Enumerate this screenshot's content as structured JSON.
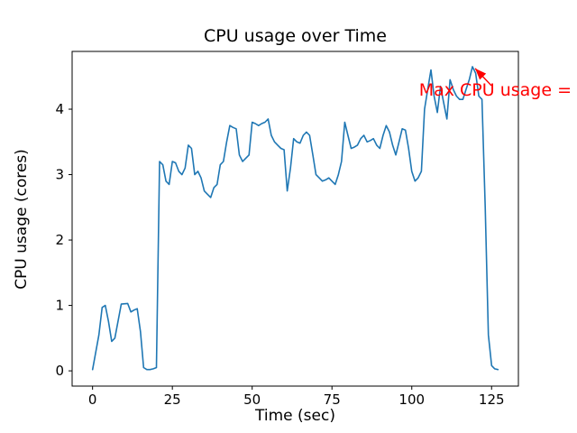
{
  "figure": {
    "title": "CPU usage over Time",
    "xlabel": "Time (sec)",
    "ylabel": "CPU usage (cores)",
    "annotation_text": "Max CPU usage = "
  },
  "chart_data": {
    "type": "line",
    "title": "CPU usage over Time",
    "xlabel": "Time (sec)",
    "ylabel": "CPU usage (cores)",
    "line_color": "#1f77b4",
    "annotation": {
      "text": "Max CPU usage = ",
      "color": "#ff0000",
      "arrow_xy": [
        119,
        4.65
      ]
    },
    "grid": false,
    "legend": "none",
    "xlim": [
      -6.4,
      133.4
    ],
    "ylim": [
      -0.233,
      4.883
    ],
    "xticks": [
      0,
      25,
      50,
      75,
      100,
      125
    ],
    "yticks": [
      0,
      1,
      2,
      3,
      4
    ],
    "x": [
      0,
      2,
      3,
      4,
      5,
      6,
      7,
      9,
      11,
      12,
      13,
      14,
      15,
      16,
      17,
      18,
      19,
      20,
      21,
      22,
      23,
      24,
      25,
      26,
      27,
      28,
      29,
      30,
      31,
      32,
      33,
      34,
      35,
      36,
      37,
      38,
      39,
      40,
      41,
      42,
      43,
      44,
      45,
      46,
      47,
      48,
      49,
      50,
      51,
      52,
      53,
      54,
      55,
      56,
      57,
      58,
      59,
      60,
      61,
      62,
      63,
      64,
      65,
      66,
      67,
      68,
      69,
      70,
      71,
      72,
      73,
      74,
      75,
      76,
      77,
      78,
      79,
      80,
      81,
      82,
      83,
      84,
      85,
      86,
      87,
      88,
      89,
      90,
      91,
      92,
      93,
      94,
      95,
      96,
      97,
      98,
      99,
      100,
      101,
      102,
      103,
      104,
      105,
      106,
      107,
      108,
      109,
      110,
      111,
      112,
      113,
      114,
      115,
      116,
      117,
      118,
      119,
      120,
      121,
      122,
      123,
      124,
      125,
      126,
      127
    ],
    "y": [
      0.02,
      0.55,
      0.97,
      1.0,
      0.75,
      0.45,
      0.5,
      1.02,
      1.03,
      0.9,
      0.93,
      0.95,
      0.6,
      0.05,
      0.02,
      0.02,
      0.03,
      0.05,
      3.2,
      3.15,
      2.9,
      2.85,
      3.2,
      3.18,
      3.05,
      3.0,
      3.1,
      3.45,
      3.4,
      3.0,
      3.05,
      2.95,
      2.75,
      2.7,
      2.65,
      2.8,
      2.85,
      3.15,
      3.2,
      3.5,
      3.75,
      3.72,
      3.7,
      3.3,
      3.2,
      3.25,
      3.3,
      3.8,
      3.78,
      3.75,
      3.78,
      3.8,
      3.85,
      3.6,
      3.5,
      3.45,
      3.4,
      3.38,
      2.75,
      3.1,
      3.55,
      3.5,
      3.48,
      3.6,
      3.65,
      3.6,
      3.3,
      3.0,
      2.95,
      2.9,
      2.92,
      2.95,
      2.9,
      2.85,
      3.0,
      3.2,
      3.8,
      3.6,
      3.4,
      3.42,
      3.45,
      3.55,
      3.6,
      3.5,
      3.52,
      3.55,
      3.45,
      3.4,
      3.6,
      3.75,
      3.65,
      3.45,
      3.3,
      3.5,
      3.7,
      3.68,
      3.4,
      3.05,
      2.9,
      2.95,
      3.05,
      4.0,
      4.3,
      4.6,
      4.2,
      3.95,
      4.35,
      4.1,
      3.85,
      4.45,
      4.3,
      4.2,
      4.15,
      4.15,
      4.3,
      4.45,
      4.65,
      4.55,
      4.2,
      4.15,
      2.5,
      0.55,
      0.08,
      0.03,
      0.02
    ]
  }
}
